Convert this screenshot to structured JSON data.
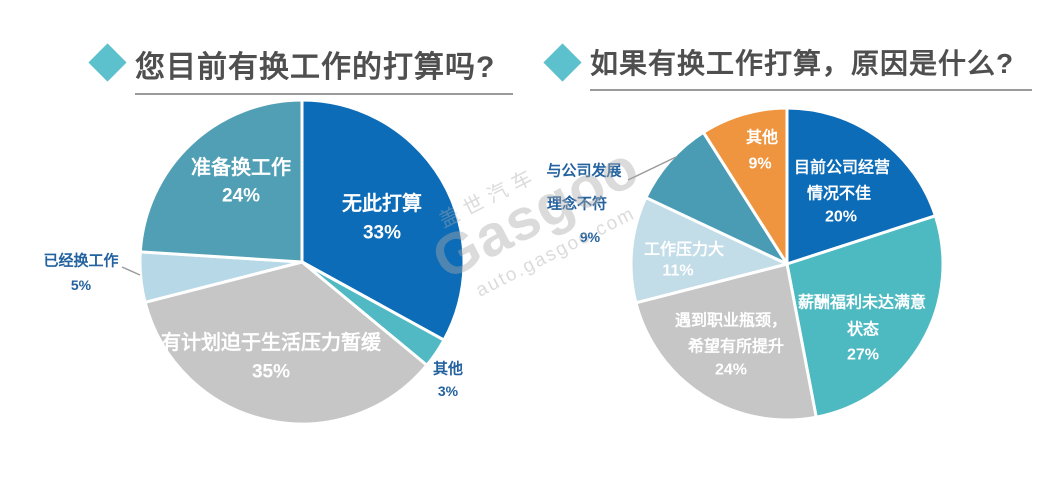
{
  "page": {
    "background": "#ffffff"
  },
  "headers": [
    {
      "title": "您目前有换工作的打算吗?",
      "bullet_icon": "diamond-bullet",
      "accent_color": "#5cc1cc"
    },
    {
      "title": "如果有换工作打算，原因是什么?",
      "bullet_icon": "diamond-bullet",
      "accent_color": "#5cc1cc"
    }
  ],
  "watermark": {
    "cn": "盖世汽车",
    "brand": "Gasgoo",
    "domain": "auto.gasgoo.com"
  },
  "colors": {
    "blue": "#0d6cb7",
    "teal": "#509fb4",
    "cyan": "#50b9c3",
    "gray": "#c6c6c6",
    "pale_blue_left": "#b7d8e6",
    "pale_blue_right": "#c3dde8",
    "orange": "#f0953f",
    "outside_label_text": "#23629f",
    "title_text": "#4f4f4f"
  },
  "chart_data": [
    {
      "type": "pie",
      "title": "您目前有换工作的打算吗?",
      "start_angle_deg": 0,
      "direction": "clockwise",
      "legend_position": "none",
      "slices": [
        {
          "label": "无此打算",
          "value": 33,
          "percent_label": "33%",
          "color": "#0d6cb7",
          "label_position": "inside",
          "label_lines": [
            "无此打算"
          ]
        },
        {
          "label": "其他",
          "value": 3,
          "percent_label": "3%",
          "color": "#50b9c3",
          "label_position": "outside",
          "label_lines": [
            "其他"
          ]
        },
        {
          "label": "有计划迫于生活压力暂缓",
          "value": 35,
          "percent_label": "35%",
          "color": "#c6c6c6",
          "label_position": "inside",
          "label_lines": [
            "有计划迫于生活压力暂缓"
          ]
        },
        {
          "label": "已经换工作",
          "value": 5,
          "percent_label": "5%",
          "color": "#b7d8e6",
          "label_position": "outside",
          "label_lines": [
            "已经换工作"
          ]
        },
        {
          "label": "准备换工作",
          "value": 24,
          "percent_label": "24%",
          "color": "#509fb4",
          "label_position": "inside",
          "label_lines": [
            "准备换工作"
          ]
        }
      ]
    },
    {
      "type": "pie",
      "title": "如果有换工作打算，原因是什么?",
      "start_angle_deg": 0,
      "direction": "clockwise",
      "legend_position": "none",
      "slices": [
        {
          "label": "目前公司经营情况不佳",
          "value": 20,
          "percent_label": "20%",
          "color": "#0d6cb7",
          "label_position": "inside",
          "label_lines": [
            "目前公司经营",
            "情况不佳"
          ]
        },
        {
          "label": "薪酬福利未达满意状态",
          "value": 27,
          "percent_label": "27%",
          "color": "#4db9c1",
          "label_position": "inside",
          "label_lines": [
            "薪酬福利未达满意",
            "状态"
          ]
        },
        {
          "label": "遇到职业瓶颈，希望有所提升",
          "value": 24,
          "percent_label": "24%",
          "color": "#c6c6c6",
          "label_position": "inside",
          "label_lines": [
            "遇到职业瓶颈，",
            "希望有所提升"
          ]
        },
        {
          "label": "工作压力大",
          "value": 11,
          "percent_label": "11%",
          "color": "#c3dde8",
          "label_position": "inside",
          "label_lines": [
            "工作压力大"
          ]
        },
        {
          "label": "与公司发展理念不符",
          "value": 9,
          "percent_label": "9%",
          "color": "#4a9cb4",
          "label_position": "outside",
          "label_lines": [
            "与公司发展",
            "理念不符"
          ]
        },
        {
          "label": "其他",
          "value": 9,
          "percent_label": "9%",
          "color": "#f0953f",
          "label_position": "inside",
          "label_lines": [
            "其他"
          ]
        }
      ]
    }
  ]
}
